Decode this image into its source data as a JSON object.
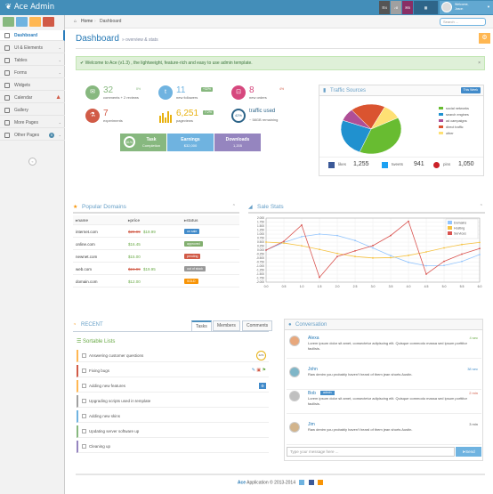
{
  "app": {
    "brand": "Ace Admin"
  },
  "navbar": {
    "badges": [
      {
        "icon": "tasks-icon",
        "count": "4",
        "color": "#555555"
      },
      {
        "icon": "bell-icon",
        "count": "8",
        "color": "#a0a0a0"
      },
      {
        "icon": "envelope-icon",
        "count": "5",
        "color": "#892e65"
      },
      {
        "icon": "user-menu",
        "count": "",
        "color": "#2e6589"
      }
    ],
    "user_welcome": "Welcome,",
    "user_name": "Jason"
  },
  "sidebar": {
    "shortcut_colors": [
      "#87b87f",
      "#6fb3e0",
      "#ffb752",
      "#d15b47"
    ],
    "items": [
      {
        "label": "Dashboard",
        "icon": "dashboard-icon",
        "active": true
      },
      {
        "label": "UI & Elements",
        "icon": "desktop-icon",
        "arrow": true
      },
      {
        "label": "Tables",
        "icon": "list-icon",
        "arrow": true
      },
      {
        "label": "Forms",
        "icon": "edit-icon",
        "arrow": true
      },
      {
        "label": "Widgets",
        "icon": "widget-icon"
      },
      {
        "label": "Calendar",
        "icon": "calendar-icon",
        "badge": "!"
      },
      {
        "label": "Gallery",
        "icon": "picture-icon"
      },
      {
        "label": "More Pages",
        "icon": "tag-icon",
        "arrow": true
      },
      {
        "label": "Other Pages",
        "icon": "file-icon",
        "badge": "5",
        "arrow": true
      }
    ],
    "collapse": "«"
  },
  "breadcrumbs": {
    "home": "Home",
    "current": "Dashboard",
    "search_placeholder": "Search ..."
  },
  "page": {
    "title": "Dashboard",
    "subtitle": "» overview & stats"
  },
  "alert": {
    "text": "Welcome to Ace (v1.3) , the lightweight, feature-rich and easy to use admin template.",
    "close": "×"
  },
  "infoboxes": [
    {
      "num": "32",
      "label": "comments + 2 reviews",
      "badge": "8%",
      "color": "#6fb3e0",
      "icon": "comments-icon"
    },
    {
      "num": "11",
      "label": "new followers",
      "badge": "+32%",
      "color": "#6fb3e0",
      "icon": "twitter-icon"
    },
    {
      "num": "8",
      "label": "new orders",
      "badge": "4%",
      "color": "#d6487e",
      "icon": "cart-icon"
    },
    {
      "num": "7",
      "label": "experiments",
      "badge": "",
      "color": "#d15b47",
      "icon": "flask-icon"
    },
    {
      "num": "6,251",
      "label": "pageviews",
      "badge": "7.2%",
      "color": "#e8b110",
      "icon": "sparkline"
    },
    {
      "num": "42%",
      "label": "traffic used",
      "sub": "~ 58GB remaining",
      "badge": "",
      "color": "#2e6589",
      "icon": "pie-small"
    }
  ],
  "tiles": [
    {
      "t1": "Task",
      "t2": "Completion",
      "pct": "61%",
      "color": "#87b87f"
    },
    {
      "t1": "Earnings",
      "t2": "$32,000",
      "color": "#6fb3e0"
    },
    {
      "t1": "Downloads",
      "t2": "1,205",
      "color": "#9585bf"
    }
  ],
  "traffic": {
    "title": "Traffic Sources",
    "dropdown": "This Week",
    "legend": [
      "social networks",
      "search engines",
      "ad campaigns",
      "direct traffic",
      "other"
    ],
    "legend_colors": [
      "#68bc31",
      "#2091cf",
      "#af4e96",
      "#da5430",
      "#fee074"
    ],
    "slices": [
      38.7,
      24.5,
      8.2,
      18.6,
      10
    ],
    "stats": [
      {
        "icon": "facebook-icon",
        "label": "likes",
        "value": "1,255",
        "color": "#3b5998"
      },
      {
        "icon": "twitter-icon",
        "label": "tweets",
        "value": "941",
        "color": "#1da1f2"
      },
      {
        "icon": "pinterest-icon",
        "label": "pins",
        "value": "1,050",
        "color": "#cb2027"
      }
    ]
  },
  "domains": {
    "title": "Popular Domains",
    "headers": [
      "name",
      "price",
      "status"
    ],
    "rows": [
      {
        "name": "internet.com",
        "old": "$29.99",
        "price": "$19.99",
        "status": "on sale",
        "color": "#428bca"
      },
      {
        "name": "online.com",
        "old": "",
        "price": "$16.45",
        "status": "approved",
        "color": "#82af6f"
      },
      {
        "name": "newnet.com",
        "old": "",
        "price": "$15.00",
        "status": "pending",
        "color": "#d15b47"
      },
      {
        "name": "web.com",
        "old": "$24.99",
        "price": "$19.95",
        "status": "out of stock",
        "color": "#999999"
      },
      {
        "name": "domain.com",
        "old": "",
        "price": "$12.00",
        "status": "SOLD",
        "color": "#f89406"
      }
    ]
  },
  "sale_stats": {
    "title": "Sale Stats"
  },
  "chart_data": {
    "type": "line",
    "xlim": [
      0,
      6
    ],
    "ylim": [
      -2,
      2
    ],
    "xticks": [
      "0.0",
      "0.5",
      "1.0",
      "1.5",
      "2.0",
      "2.5",
      "3.0",
      "3.5",
      "4.0",
      "4.5",
      "5.0",
      "5.5",
      "6.0"
    ],
    "yticks": [
      "2.000",
      "1.750",
      "1.500",
      "1.250",
      "1.000",
      "0.750",
      "0.500",
      "0.250",
      "0.000",
      "-0.250",
      "-0.500",
      "-0.750",
      "-1.000",
      "-1.250",
      "-1.500",
      "-1.750",
      "-2.000"
    ],
    "series": [
      {
        "name": "Domains",
        "color": "#93c5fd",
        "x": [
          0,
          0.5,
          1,
          1.5,
          2,
          2.5,
          3,
          3.5,
          4,
          4.5,
          5,
          5.5,
          6
        ],
        "y": [
          0,
          0.48,
          0.84,
          1.0,
          0.91,
          0.6,
          0.14,
          -0.35,
          -0.76,
          -0.98,
          -0.96,
          -0.71,
          -0.28
        ]
      },
      {
        "name": "Hosting",
        "color": "#f5c242",
        "x": [
          0,
          0.5,
          1,
          1.5,
          2,
          2.5,
          3,
          3.5,
          4,
          4.5,
          5,
          5.5,
          6
        ],
        "y": [
          0.5,
          0.44,
          0.27,
          0.04,
          -0.21,
          -0.4,
          -0.49,
          -0.47,
          -0.33,
          -0.11,
          0.14,
          0.35,
          0.48
        ]
      },
      {
        "name": "Services",
        "color": "#d9534f",
        "x": [
          0,
          0.5,
          1,
          1.5,
          2,
          2.5,
          3,
          3.5,
          4,
          4.5,
          5,
          5.5,
          6
        ],
        "y": [
          0,
          0.55,
          1.56,
          -1.7,
          -0.4,
          -0.05,
          0.28,
          0.91,
          1.8,
          -1.5,
          -0.7,
          -0.25,
          0.1
        ]
      }
    ]
  },
  "recent": {
    "title": "RECENT",
    "tabs": [
      "Tasks",
      "Members",
      "Comments"
    ],
    "list_title": "Sortable Lists"
  },
  "tasks": [
    {
      "label": "Answering customer questions",
      "border": "#ffb752",
      "extra": "42%"
    },
    {
      "label": "Fixing bugs",
      "border": "#d15b47",
      "extra": "actions"
    },
    {
      "label": "Adding new features",
      "border": "#ffb752",
      "extra": "gear"
    },
    {
      "label": "Upgrading scripts used in template",
      "border": "#a0a0a0",
      "extra": ""
    },
    {
      "label": "Adding new skins",
      "border": "#6fb3e0",
      "extra": ""
    },
    {
      "label": "Updating server software up",
      "border": "#87b87f",
      "extra": ""
    },
    {
      "label": "Cleaning up",
      "border": "#9585bf",
      "extra": ""
    }
  ],
  "conversation": {
    "title": "Conversation",
    "input_placeholder": "Type your message here ...",
    "send": "Send",
    "messages": [
      {
        "name": "Alexa",
        "time": "4 sec",
        "text": "Lorem ipsum dolor sit amet, consectetur adipiscing elit. Quisque commodo massa sed ipsum porttitor facilisis."
      },
      {
        "name": "John",
        "time": "38 sec",
        "text": "Raw denim you probably haven't heard of them jean shorts Austin."
      },
      {
        "name": "Bob",
        "tag": "admin",
        "time": "2 min",
        "text": "Lorem ipsum dolor sit amet, consectetur adipiscing elit. Quisque commodo massa sed ipsum porttitor facilisis."
      },
      {
        "name": "Jim",
        "time": "3 min",
        "text": "Raw denim you probably haven't heard of them jean shorts Austin."
      }
    ]
  },
  "footer": {
    "brand": "Ace",
    "text": "Application © 2013-2014"
  }
}
